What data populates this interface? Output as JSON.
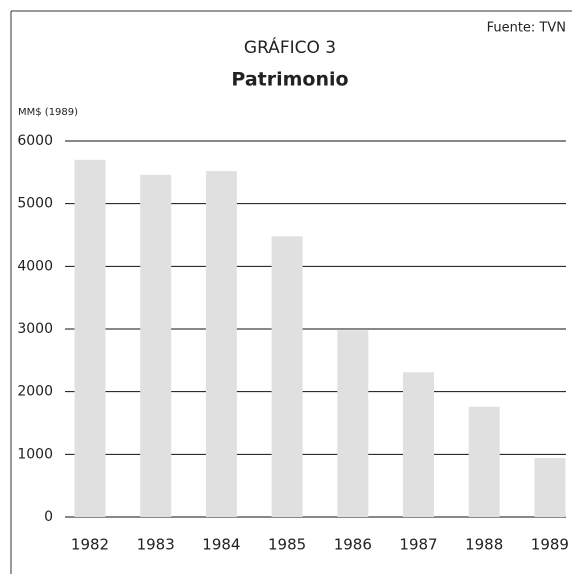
{
  "chart_data": {
    "type": "bar",
    "title": "GRÁFICO 3",
    "subtitle": "Patrimonio",
    "source": "Fuente: TVN",
    "ylabel": "MM$ (1989)",
    "categories": [
      "1982",
      "1983",
      "1984",
      "1985",
      "1986",
      "1987",
      "1988",
      "1989"
    ],
    "values": [
      5700,
      5460,
      5520,
      4480,
      2980,
      2310,
      1760,
      940
    ],
    "color": "#e0e0e0",
    "ylim": [
      0,
      6000
    ],
    "yticks": [
      0,
      1000,
      2000,
      3000,
      4000,
      5000,
      6000
    ],
    "grid": true
  }
}
